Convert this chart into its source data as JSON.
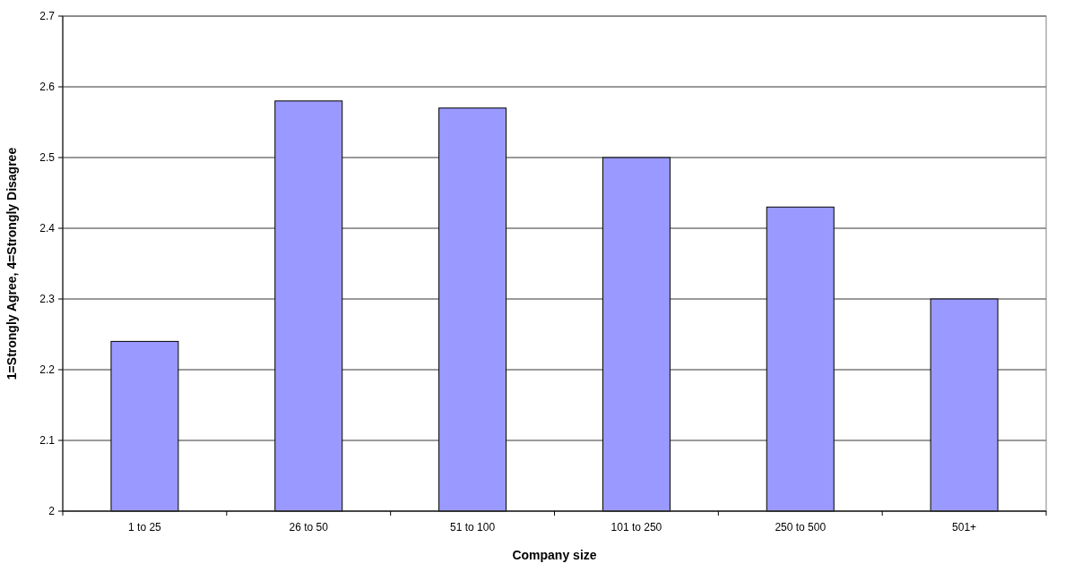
{
  "chart_data": {
    "type": "bar",
    "xlabel": "Company size",
    "ylabel": "1=Strongly Agree, 4=Strongly Disagree",
    "categories": [
      "1 to 25",
      "26 to 50",
      "51 to 100",
      "101 to 250",
      "250 to 500",
      "501+"
    ],
    "values": [
      2.24,
      2.58,
      2.57,
      2.5,
      2.43,
      2.3
    ],
    "color": "#9999ff",
    "ylim": [
      2,
      2.7
    ],
    "yticks": [
      2,
      2.1,
      2.2,
      2.3,
      2.4,
      2.5,
      2.6,
      2.7
    ],
    "grid": "y"
  }
}
